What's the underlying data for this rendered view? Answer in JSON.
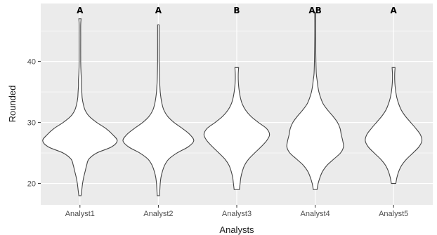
{
  "chart_data": {
    "type": "violin",
    "xlabel": "Analysts",
    "ylabel": "Rounded",
    "categories": [
      "Analyst1",
      "Analyst2",
      "Analyst3",
      "Analyst4",
      "Analyst5"
    ],
    "group_letters": [
      "A",
      "A",
      "B",
      "AB",
      "A"
    ],
    "ylim": [
      16.5,
      49.5
    ],
    "yticks": [
      20,
      30,
      40
    ],
    "grid": true,
    "background": "#ebebeb",
    "gridline_color": "#ffffff",
    "violins": [
      {
        "category": "Analyst1",
        "min": 18,
        "max": 47,
        "profile": [
          [
            18,
            0.03
          ],
          [
            19,
            0.05
          ],
          [
            20,
            0.07
          ],
          [
            21,
            0.1
          ],
          [
            22,
            0.14
          ],
          [
            23,
            0.18
          ],
          [
            24,
            0.24
          ],
          [
            25,
            0.45
          ],
          [
            26,
            0.85
          ],
          [
            27,
            1.0
          ],
          [
            28,
            0.88
          ],
          [
            29,
            0.7
          ],
          [
            30,
            0.45
          ],
          [
            31,
            0.25
          ],
          [
            32,
            0.14
          ],
          [
            33,
            0.09
          ],
          [
            34,
            0.06
          ],
          [
            35,
            0.05
          ],
          [
            36,
            0.04
          ],
          [
            37,
            0.04
          ],
          [
            38,
            0.03
          ],
          [
            40,
            0.02
          ],
          [
            44,
            0.02
          ],
          [
            46,
            0.02
          ],
          [
            47,
            0.03
          ]
        ]
      },
      {
        "category": "Analyst2",
        "min": 18,
        "max": 46,
        "profile": [
          [
            18,
            0.03
          ],
          [
            19,
            0.04
          ],
          [
            20,
            0.05
          ],
          [
            21,
            0.07
          ],
          [
            22,
            0.11
          ],
          [
            23,
            0.17
          ],
          [
            24,
            0.28
          ],
          [
            25,
            0.5
          ],
          [
            26,
            0.8
          ],
          [
            27,
            0.95
          ],
          [
            28,
            0.85
          ],
          [
            29,
            0.65
          ],
          [
            30,
            0.42
          ],
          [
            31,
            0.25
          ],
          [
            32,
            0.15
          ],
          [
            33,
            0.1
          ],
          [
            34,
            0.07
          ],
          [
            35,
            0.05
          ],
          [
            36,
            0.04
          ],
          [
            37,
            0.03
          ],
          [
            40,
            0.02
          ],
          [
            44,
            0.02
          ],
          [
            46,
            0.02
          ]
        ]
      },
      {
        "category": "Analyst3",
        "min": 19,
        "max": 39,
        "profile": [
          [
            19,
            0.07
          ],
          [
            20,
            0.09
          ],
          [
            21,
            0.11
          ],
          [
            22,
            0.15
          ],
          [
            23,
            0.21
          ],
          [
            24,
            0.32
          ],
          [
            25,
            0.48
          ],
          [
            26,
            0.65
          ],
          [
            27,
            0.8
          ],
          [
            28,
            0.88
          ],
          [
            29,
            0.8
          ],
          [
            30,
            0.58
          ],
          [
            31,
            0.38
          ],
          [
            32,
            0.24
          ],
          [
            33,
            0.15
          ],
          [
            34,
            0.1
          ],
          [
            35,
            0.07
          ],
          [
            36,
            0.05
          ],
          [
            37,
            0.04
          ],
          [
            38,
            0.04
          ],
          [
            39,
            0.05
          ]
        ]
      },
      {
        "category": "Analyst4",
        "min": 19,
        "max": 48,
        "profile": [
          [
            19,
            0.05
          ],
          [
            20,
            0.08
          ],
          [
            21,
            0.13
          ],
          [
            22,
            0.2
          ],
          [
            23,
            0.32
          ],
          [
            24,
            0.5
          ],
          [
            25,
            0.68
          ],
          [
            26,
            0.76
          ],
          [
            27,
            0.74
          ],
          [
            28,
            0.7
          ],
          [
            29,
            0.67
          ],
          [
            30,
            0.6
          ],
          [
            31,
            0.48
          ],
          [
            32,
            0.34
          ],
          [
            33,
            0.22
          ],
          [
            34,
            0.15
          ],
          [
            35,
            0.1
          ],
          [
            36,
            0.07
          ],
          [
            37,
            0.05
          ],
          [
            38,
            0.03
          ],
          [
            40,
            0.02
          ],
          [
            44,
            0.01
          ],
          [
            48,
            0.01
          ]
        ]
      },
      {
        "category": "Analyst5",
        "min": 20,
        "max": 39,
        "profile": [
          [
            20,
            0.06
          ],
          [
            21,
            0.09
          ],
          [
            22,
            0.14
          ],
          [
            23,
            0.22
          ],
          [
            24,
            0.35
          ],
          [
            25,
            0.52
          ],
          [
            26,
            0.68
          ],
          [
            27,
            0.76
          ],
          [
            28,
            0.72
          ],
          [
            29,
            0.6
          ],
          [
            30,
            0.46
          ],
          [
            31,
            0.32
          ],
          [
            32,
            0.21
          ],
          [
            33,
            0.14
          ],
          [
            34,
            0.09
          ],
          [
            35,
            0.06
          ],
          [
            36,
            0.04
          ],
          [
            37,
            0.03
          ],
          [
            38,
            0.03
          ],
          [
            39,
            0.04
          ]
        ]
      }
    ]
  }
}
